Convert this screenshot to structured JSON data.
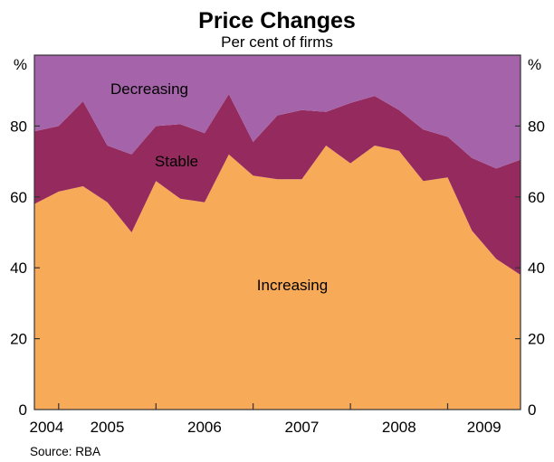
{
  "title": "Price Changes",
  "subtitle": "Per cent of firms",
  "source_note": "Source: RBA",
  "axis": {
    "unit_left": "%",
    "unit_right": "%",
    "y_tick_values": [
      0,
      20,
      40,
      60,
      80
    ],
    "x_year_labels": [
      "2004",
      "2005",
      "2006",
      "2007",
      "2008",
      "2009"
    ]
  },
  "series_labels": {
    "decreasing": "Decreasing",
    "stable": "Stable",
    "increasing": "Increasing"
  },
  "colors": {
    "increasing_fill": "#F7AB59",
    "stable_fill": "#942A5E",
    "decreasing_fill": "#A564AA",
    "axis_line": "#333333",
    "label_on_dark": "#FFFFFF",
    "label_on_light": "#000000"
  },
  "chart_data": {
    "type": "area",
    "stacked": true,
    "title": "Price Changes",
    "subtitle": "Per cent of firms",
    "ylabel": "%",
    "ylim": [
      0,
      100
    ],
    "xlim": [
      2004.75,
      2009.75
    ],
    "grid": false,
    "legend_position": "labels-inside-areas",
    "x": [
      2004.75,
      2005.0,
      2005.25,
      2005.5,
      2005.75,
      2006.0,
      2006.25,
      2006.5,
      2006.75,
      2007.0,
      2007.25,
      2007.5,
      2007.75,
      2008.0,
      2008.25,
      2008.5,
      2008.75,
      2009.0,
      2009.25,
      2009.5,
      2009.75
    ],
    "series": [
      {
        "name": "Increasing",
        "color": "#F7AB59",
        "values": [
          58,
          61.5,
          63,
          58.5,
          50,
          64.5,
          59.5,
          58.5,
          72,
          66,
          65,
          65,
          74.5,
          69.5,
          74.5,
          73,
          64.5,
          65.5,
          50.5,
          42.5,
          38
        ]
      },
      {
        "name": "Stable",
        "color": "#942A5E",
        "values": [
          20.5,
          18.5,
          24,
          16,
          22,
          15.5,
          21,
          19.5,
          17,
          9.5,
          18,
          19.5,
          9.5,
          17,
          14,
          11.5,
          14.5,
          11.5,
          20.5,
          25.5,
          32.5
        ]
      },
      {
        "name": "Decreasing",
        "color": "#A564AA",
        "values": [
          21.5,
          20,
          13,
          25.5,
          28,
          20,
          19.5,
          22,
          11,
          24.5,
          17,
          15.5,
          16,
          13.5,
          11.5,
          15.5,
          21,
          23,
          29,
          32,
          29.5
        ]
      }
    ]
  }
}
